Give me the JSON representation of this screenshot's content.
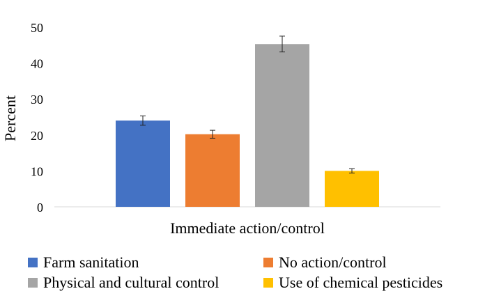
{
  "chart_data": {
    "type": "bar",
    "categories": [
      "Immediate action/control"
    ],
    "series": [
      {
        "name": "Farm sanitation",
        "values": [
          24.0
        ],
        "error": [
          1.3
        ],
        "color": "#4472C4"
      },
      {
        "name": "No action/control",
        "values": [
          20.2
        ],
        "error": [
          1.1
        ],
        "color": "#ED7D31"
      },
      {
        "name": "Physical and cultural control",
        "values": [
          45.3
        ],
        "error": [
          2.2
        ],
        "color": "#A5A5A5"
      },
      {
        "name": "Use of chemical pesticides",
        "values": [
          10.0
        ],
        "error": [
          0.6
        ],
        "color": "#FFC000"
      }
    ],
    "xlabel": "Immediate action/control",
    "ylabel": "Percent",
    "ylim": [
      0,
      50
    ],
    "yticks": [
      0,
      10,
      20,
      30,
      40,
      50
    ],
    "grid": false,
    "legend_position": "bottom"
  }
}
